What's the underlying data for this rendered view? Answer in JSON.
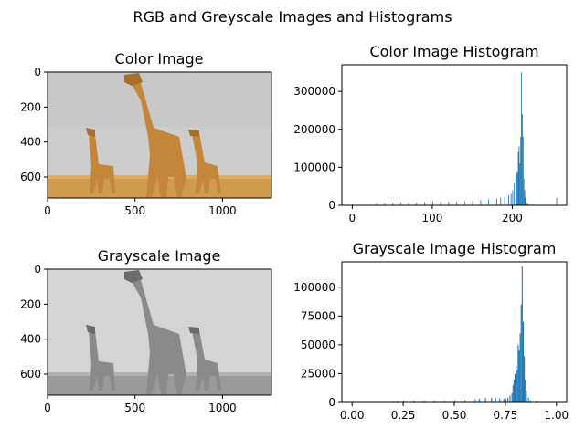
{
  "figure": {
    "suptitle": "RGB and Greyscale Images and Histograms"
  },
  "colors": {
    "bar": "#1f77b4",
    "axis": "#000000",
    "sky_color": "#c9c9c9",
    "ground_color": "#cf9b4d",
    "giraffe_color": "#c4863a",
    "sky_gray": "#d2d2d2",
    "ground_gray": "#9a9a9a",
    "giraffe_gray": "#8a8a8a"
  },
  "chart_data": [
    {
      "id": "color-image",
      "type": "image",
      "title": "Color Image",
      "xticks": [
        0,
        500,
        1000
      ],
      "yticks": [
        0,
        200,
        400,
        600
      ],
      "xlim": [
        0,
        1280
      ],
      "ylim": [
        720,
        0
      ]
    },
    {
      "id": "color-histogram",
      "type": "bar",
      "title": "Color Image Histogram",
      "xlim": [
        -13,
        268
      ],
      "ylim": [
        0,
        370000
      ],
      "xticks": [
        0,
        100,
        200
      ],
      "yticks": [
        0,
        100000,
        200000,
        300000
      ],
      "x": [
        0,
        20,
        30,
        40,
        50,
        60,
        70,
        80,
        90,
        100,
        110,
        120,
        130,
        140,
        150,
        160,
        170,
        180,
        185,
        190,
        195,
        198,
        200,
        202,
        204,
        205,
        206,
        207,
        208,
        209,
        210,
        211,
        212,
        213,
        214,
        215,
        216,
        217,
        218,
        220,
        225,
        240,
        255
      ],
      "values": [
        3000,
        1500,
        4500,
        5000,
        5500,
        6000,
        6500,
        7000,
        8000,
        10000,
        9500,
        9000,
        9000,
        10000,
        12000,
        14000,
        16000,
        18000,
        20000,
        22000,
        26000,
        30000,
        40000,
        60000,
        80000,
        90000,
        85000,
        140000,
        155000,
        110000,
        180000,
        350000,
        240000,
        180000,
        70000,
        40000,
        20000,
        8000,
        4000,
        3000,
        2000,
        1500,
        20000
      ]
    },
    {
      "id": "grayscale-image",
      "type": "image",
      "title": "Grayscale Image",
      "xticks": [
        0,
        500,
        1000
      ],
      "yticks": [
        0,
        200,
        400,
        600
      ],
      "xlim": [
        0,
        1280
      ],
      "ylim": [
        720,
        0
      ]
    },
    {
      "id": "grayscale-histogram",
      "type": "bar",
      "title": "Grayscale Image Histogram",
      "xlim": [
        -0.05,
        1.05
      ],
      "ylim": [
        0,
        122000
      ],
      "xticks": [
        0.0,
        0.25,
        0.5,
        0.75,
        1.0
      ],
      "xticklabels": [
        "0.00",
        "0.25",
        "0.50",
        "0.75",
        "1.00"
      ],
      "yticks": [
        0,
        25000,
        50000,
        75000,
        100000
      ],
      "x": [
        0.2,
        0.22,
        0.25,
        0.3,
        0.35,
        0.4,
        0.45,
        0.5,
        0.55,
        0.6,
        0.62,
        0.65,
        0.68,
        0.7,
        0.72,
        0.74,
        0.75,
        0.76,
        0.77,
        0.78,
        0.785,
        0.79,
        0.795,
        0.8,
        0.805,
        0.81,
        0.815,
        0.82,
        0.825,
        0.83,
        0.835,
        0.84,
        0.845,
        0.85,
        0.86,
        0.87,
        0.9,
        0.95
      ],
      "values": [
        600,
        900,
        1200,
        1100,
        1200,
        1100,
        1200,
        1500,
        2000,
        2800,
        3200,
        3800,
        4200,
        4000,
        3500,
        3200,
        3500,
        4000,
        6000,
        8000,
        15000,
        20000,
        25000,
        32000,
        28000,
        50000,
        45000,
        60000,
        85000,
        118000,
        70000,
        40000,
        20000,
        10000,
        4000,
        2000,
        1000,
        500
      ]
    }
  ]
}
